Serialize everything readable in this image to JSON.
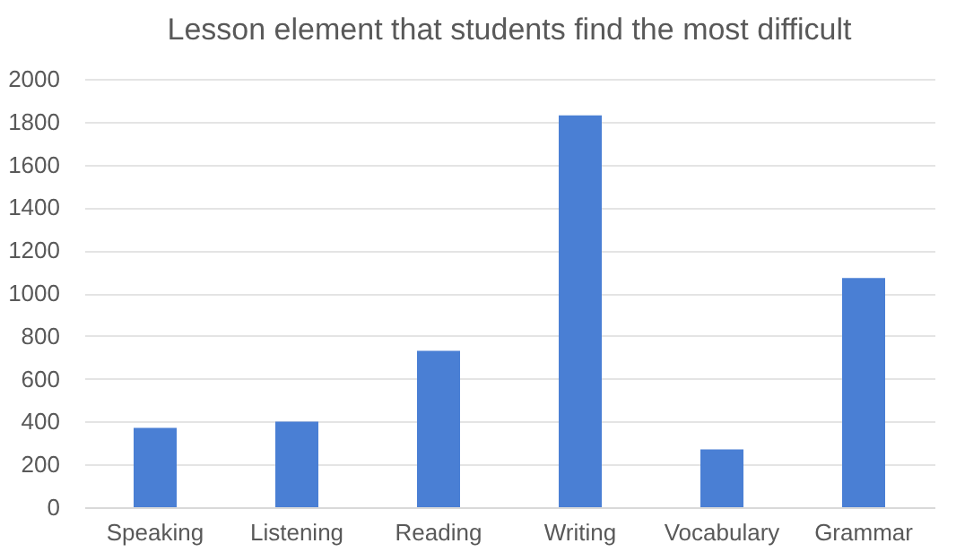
{
  "chart_data": {
    "type": "bar",
    "title": "Lesson element that students find the most difficult",
    "categories": [
      "Speaking",
      "Listening",
      "Reading",
      "Writing",
      "Vocabulary",
      "Grammar"
    ],
    "values": [
      370,
      400,
      730,
      1830,
      270,
      1070
    ],
    "color": "#4a7fd4",
    "ylim": [
      0,
      2000
    ],
    "yticks": [
      0,
      200,
      400,
      600,
      800,
      1000,
      1200,
      1400,
      1600,
      1800,
      2000
    ],
    "grid": "y"
  }
}
